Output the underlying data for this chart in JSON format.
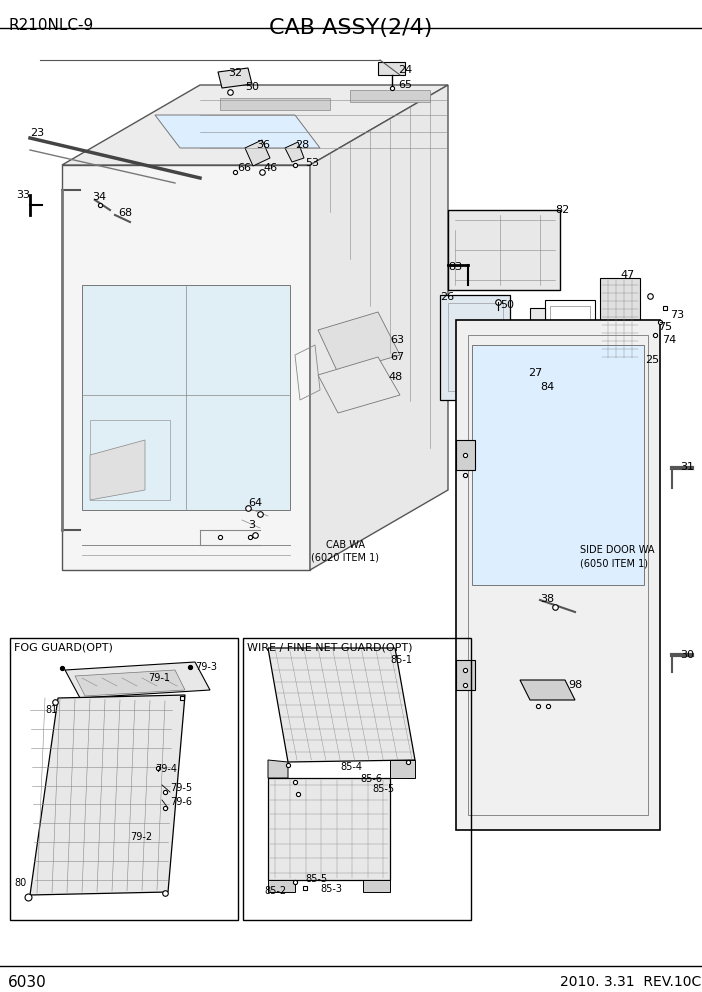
{
  "title": "CAB ASSY(2/4)",
  "model": "R210NLC-9",
  "page": "6030",
  "date": "2010. 3.31  REV.10C",
  "bg_color": "#ffffff",
  "fig_w": 7.02,
  "fig_h": 9.92,
  "dpi": 100
}
